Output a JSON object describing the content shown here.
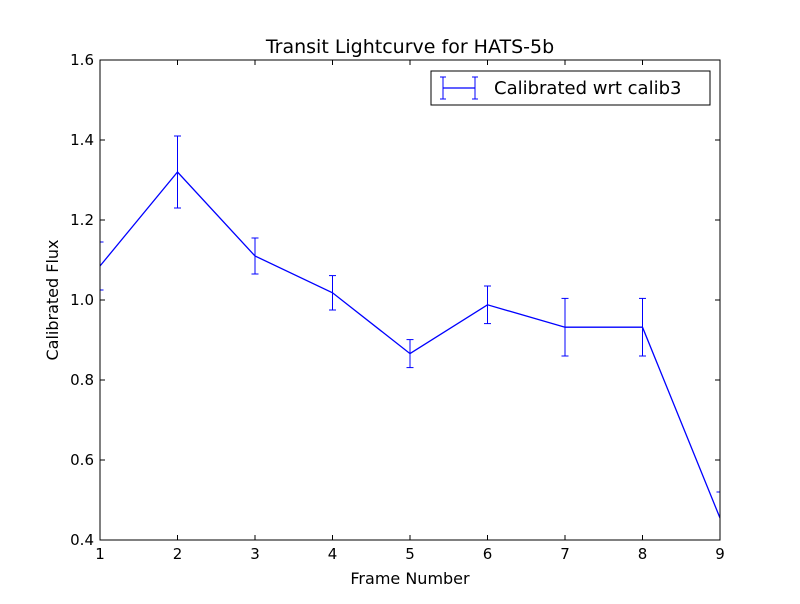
{
  "chart_data": {
    "type": "line",
    "title": "Transit Lightcurve for HATS-5b",
    "xlabel": "Frame Number",
    "ylabel": "Calibrated Flux",
    "xlim": [
      1,
      9
    ],
    "ylim": [
      0.4,
      1.6
    ],
    "x_ticks": [
      "1",
      "2",
      "3",
      "4",
      "5",
      "6",
      "7",
      "8",
      "9"
    ],
    "y_ticks": [
      "0.4",
      "0.6",
      "0.8",
      "1.0",
      "1.2",
      "1.4",
      "1.6"
    ],
    "grid": false,
    "legend_position": "top-right",
    "series": [
      {
        "name": "Calibrated wrt calib3",
        "color": "#0000ff",
        "x": [
          1,
          2,
          3,
          4,
          5,
          6,
          7,
          8,
          9
        ],
        "y": [
          1.085,
          1.32,
          1.11,
          1.018,
          0.866,
          0.988,
          0.932,
          0.932,
          0.455
        ],
        "yerr": [
          0.06,
          0.09,
          0.045,
          0.043,
          0.035,
          0.047,
          0.072,
          0.072,
          0.065
        ]
      }
    ]
  }
}
